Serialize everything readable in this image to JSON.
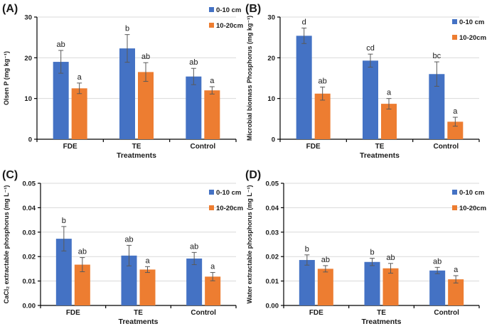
{
  "figure": {
    "xlabel": "Treatments",
    "categories": [
      "FDE",
      "TE",
      "Control"
    ],
    "legend_labels": [
      "0-10 cm",
      "10-20cm"
    ],
    "colors": {
      "series_0_10cm": "#4472C4",
      "series_10_20cm": "#ED7D31",
      "error_bar": "#595959",
      "gridline": "#D9D9D9",
      "axis": "#000000",
      "text": "#1a1a1a"
    }
  },
  "chart_data": [
    {
      "type": "bar",
      "panel_label": "(A)",
      "ylabel": "Olsen P (mg kg⁻¹)",
      "xlabel": "Treatments",
      "categories": [
        "FDE",
        "TE",
        "Control"
      ],
      "ylim": [
        0,
        30
      ],
      "ytick_step": 10,
      "ytick_decimals": 0,
      "grid": true,
      "legend_position": "top-right",
      "legend_y": [
        10,
        32
      ],
      "series": [
        {
          "name": "0-10 cm",
          "color": "#4472C4",
          "values": [
            19.0,
            22.3,
            15.4
          ],
          "errors": [
            2.8,
            3.4,
            2.0
          ],
          "sig_letters": [
            "ab",
            "b",
            "ab"
          ]
        },
        {
          "name": "10-20cm",
          "color": "#ED7D31",
          "values": [
            12.5,
            16.5,
            12.0
          ],
          "errors": [
            1.3,
            2.3,
            0.9
          ],
          "sig_letters": [
            "a",
            "ab",
            "a"
          ]
        }
      ]
    },
    {
      "type": "bar",
      "panel_label": "(B)",
      "ylabel": "Microbial biomass Phosphorus (mg kg⁻¹)",
      "xlabel": "Treatments",
      "categories": [
        "FDE",
        "TE",
        "Control"
      ],
      "ylim": [
        0,
        30
      ],
      "ytick_step": 10,
      "ytick_decimals": 0,
      "grid": true,
      "legend_position": "top-right",
      "legend_y": [
        27,
        49
      ],
      "series": [
        {
          "name": "0-10 cm",
          "color": "#4472C4",
          "values": [
            25.4,
            19.3,
            16.0
          ],
          "errors": [
            1.9,
            1.6,
            3.0
          ],
          "sig_letters": [
            "d",
            "cd",
            "bc"
          ]
        },
        {
          "name": "10-20cm",
          "color": "#ED7D31",
          "values": [
            11.2,
            8.7,
            4.3
          ],
          "errors": [
            1.6,
            1.3,
            1.1
          ],
          "sig_letters": [
            "ab",
            "a",
            "a"
          ]
        }
      ]
    },
    {
      "type": "bar",
      "panel_label": "(C)",
      "ylabel": "CaCl₂ extractable phosphorus (mg L⁻¹)",
      "xlabel": "Treatments",
      "categories": [
        "FDE",
        "TE",
        "Control"
      ],
      "ylim": [
        0,
        0.05
      ],
      "ytick_step": 0.01,
      "ytick_decimals": 2,
      "grid": true,
      "legend_position": "top-right",
      "legend_y": [
        33,
        55
      ],
      "series": [
        {
          "name": "0-10 cm",
          "color": "#4472C4",
          "values": [
            0.0273,
            0.0204,
            0.0192
          ],
          "errors": [
            0.005,
            0.0042,
            0.0025
          ],
          "sig_letters": [
            "b",
            "ab",
            "ab"
          ]
        },
        {
          "name": "10-20cm",
          "color": "#ED7D31",
          "values": [
            0.0167,
            0.0147,
            0.0118
          ],
          "errors": [
            0.0029,
            0.0012,
            0.0017
          ],
          "sig_letters": [
            "ab",
            "a",
            "a"
          ]
        }
      ]
    },
    {
      "type": "bar",
      "panel_label": "(D)",
      "ylabel": "Water extractable phosphorus (mg L⁻¹)",
      "xlabel": "Treatments",
      "categories": [
        "FDE",
        "TE",
        "Control"
      ],
      "ylim": [
        0,
        0.05
      ],
      "ytick_step": 0.01,
      "ytick_decimals": 2,
      "grid": true,
      "legend_position": "top-right",
      "legend_y": [
        33,
        55
      ],
      "series": [
        {
          "name": "0-10 cm",
          "color": "#4472C4",
          "values": [
            0.0186,
            0.0178,
            0.0143
          ],
          "errors": [
            0.0021,
            0.0015,
            0.0013
          ],
          "sig_letters": [
            "b",
            "b",
            "ab"
          ]
        },
        {
          "name": "10-20cm",
          "color": "#ED7D31",
          "values": [
            0.015,
            0.0152,
            0.0107
          ],
          "errors": [
            0.0013,
            0.002,
            0.0015
          ],
          "sig_letters": [
            "ab",
            "ab",
            "a"
          ]
        }
      ]
    }
  ]
}
